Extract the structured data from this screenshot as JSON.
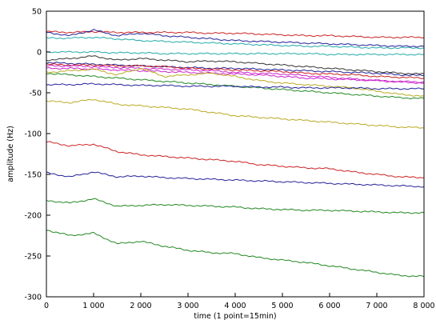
{
  "chart_data": {
    "type": "line",
    "title": "",
    "xlabel": "time (1 point=15min)",
    "ylabel": "amplitude (Hz)",
    "xlim": [
      0,
      8000
    ],
    "ylim": [
      -300,
      50
    ],
    "x_ticks": [
      0,
      1000,
      2000,
      3000,
      4000,
      5000,
      6000,
      7000,
      8000
    ],
    "x_tick_labels": [
      "0",
      "1 000",
      "2 000",
      "3 000",
      "4 000",
      "5 000",
      "6 000",
      "7 000",
      "8 000"
    ],
    "y_ticks": [
      50,
      0,
      -50,
      -100,
      -150,
      -200,
      -250,
      -300
    ],
    "y_tick_labels": [
      "50",
      "0",
      "-50",
      "-100",
      "-150",
      "-200",
      "-250",
      "-300"
    ],
    "grid": false,
    "legend": "none",
    "x": [
      0,
      500,
      1000,
      1500,
      2000,
      2500,
      3000,
      3500,
      4000,
      4500,
      5000,
      5500,
      6000,
      6500,
      7000,
      7500,
      8000
    ],
    "series": [
      {
        "color": "#cc2222",
        "values": [
          25,
          24,
          25,
          24,
          24,
          24,
          24,
          23,
          23,
          22,
          21,
          20,
          20,
          19,
          18,
          18,
          18
        ]
      },
      {
        "color": "#22aaaa",
        "values": [
          17,
          17,
          18,
          16,
          14,
          13,
          12,
          11,
          10,
          9,
          8,
          7,
          7,
          6,
          5,
          5,
          5
        ]
      },
      {
        "color": "#222299",
        "values": [
          24,
          20,
          27,
          20,
          23,
          20,
          18,
          16,
          14,
          13,
          12,
          11,
          10,
          9,
          8,
          7,
          7
        ]
      },
      {
        "color": "#22aaaa",
        "values": [
          0,
          0,
          0,
          -1,
          -1,
          -2,
          -2,
          -2,
          -2,
          -2,
          -2,
          -2,
          -3,
          -3,
          -3,
          -3,
          -3
        ]
      },
      {
        "color": "#333333",
        "values": [
          -10,
          -8,
          -5,
          -10,
          -8,
          -10,
          -12,
          -11,
          -12,
          -14,
          -16,
          -18,
          -20,
          -22,
          -24,
          -26,
          -27
        ]
      },
      {
        "color": "#222299",
        "values": [
          -13,
          -14,
          -15,
          -16,
          -17,
          -18,
          -19,
          -20,
          -20,
          -21,
          -22,
          -23,
          -24,
          -25,
          -26,
          -28,
          -29
        ]
      },
      {
        "color": "#cc2222",
        "values": [
          -15,
          -16,
          -16,
          -17,
          -17,
          -18,
          -20,
          -21,
          -22,
          -23,
          -24,
          -26,
          -27,
          -28,
          -30,
          -31,
          -32
        ]
      },
      {
        "color": "#cc22cc",
        "values": [
          -17,
          -17,
          -18,
          -19,
          -20,
          -21,
          -22,
          -23,
          -25,
          -26,
          -27,
          -29,
          -31,
          -33,
          -35,
          -36,
          -37
        ]
      },
      {
        "color": "#cc22cc",
        "values": [
          -20,
          -20,
          -21,
          -22,
          -23,
          -24,
          -25,
          -26,
          -27,
          -28,
          -30,
          -32,
          -33,
          -34,
          -35,
          -37,
          -38
        ]
      },
      {
        "color": "#bbaa22",
        "values": [
          -25,
          -23,
          -21,
          -28,
          -20,
          -30,
          -28,
          -26,
          -30,
          -35,
          -38,
          -40,
          -42,
          -44,
          -48,
          -52,
          -54
        ]
      },
      {
        "color": "#228822",
        "values": [
          -26,
          -28,
          -30,
          -32,
          -34,
          -36,
          -38,
          -40,
          -42,
          -44,
          -46,
          -48,
          -50,
          -52,
          -54,
          -56,
          -57
        ]
      },
      {
        "color": "#222299",
        "values": [
          -40,
          -40,
          -39,
          -40,
          -41,
          -41,
          -42,
          -42,
          -42,
          -43,
          -43,
          -44,
          -44,
          -44,
          -45,
          -45,
          -45
        ]
      },
      {
        "color": "#bbaa22",
        "values": [
          -60,
          -62,
          -58,
          -64,
          -66,
          -68,
          -70,
          -74,
          -78,
          -80,
          -82,
          -84,
          -86,
          -88,
          -90,
          -92,
          -93
        ]
      },
      {
        "color": "#cc2222",
        "values": [
          -110,
          -115,
          -113,
          -122,
          -126,
          -128,
          -130,
          -132,
          -134,
          -138,
          -140,
          -142,
          -143,
          -147,
          -150,
          -153,
          -154
        ]
      },
      {
        "color": "#222299",
        "values": [
          -148,
          -153,
          -147,
          -153,
          -152,
          -154,
          -155,
          -156,
          -157,
          -158,
          -159,
          -160,
          -161,
          -162,
          -163,
          -164,
          -165
        ]
      },
      {
        "color": "#228822",
        "values": [
          -182,
          -185,
          -180,
          -189,
          -188,
          -187,
          -188,
          -189,
          -190,
          -192,
          -193,
          -194,
          -194,
          -195,
          -196,
          -197,
          -197
        ]
      },
      {
        "color": "#228822",
        "values": [
          -218,
          -225,
          -222,
          -235,
          -232,
          -238,
          -243,
          -246,
          -247,
          -252,
          -255,
          -258,
          -262,
          -266,
          -270,
          -274,
          -275
        ]
      }
    ]
  }
}
